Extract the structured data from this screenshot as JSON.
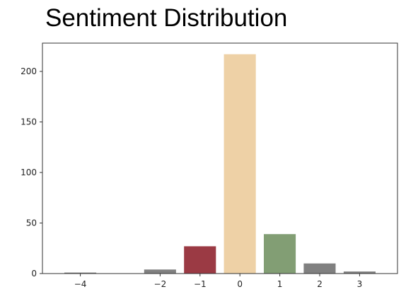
{
  "chart_data": {
    "type": "bar",
    "title": "Sentiment Distribution",
    "xlabel": "",
    "ylabel": "",
    "grid": false,
    "x": [
      -4,
      -2,
      -1,
      0,
      1,
      2,
      3
    ],
    "x_tick_labels": [
      "−4",
      "−2",
      "−1",
      "0",
      "1",
      "2",
      "3"
    ],
    "values": [
      1,
      4,
      27,
      217,
      39,
      10,
      2
    ],
    "colors": [
      "#808080",
      "#808080",
      "#9b3a44",
      "#eed1a6",
      "#829e74",
      "#808080",
      "#808080"
    ],
    "xlim": [
      -4.95,
      3.95
    ],
    "ylim": [
      0,
      228
    ],
    "y_ticks": [
      0,
      50,
      100,
      150,
      200
    ],
    "y_tick_labels": [
      "0",
      "50",
      "100",
      "150",
      "200"
    ]
  }
}
